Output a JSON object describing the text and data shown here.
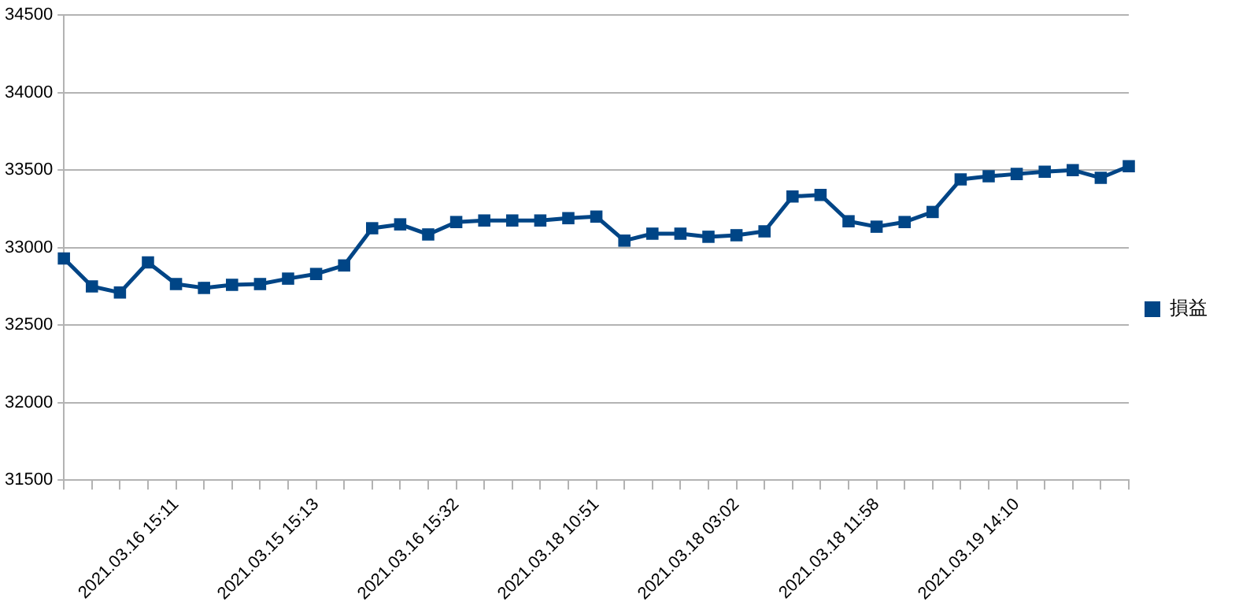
{
  "chart_data": {
    "type": "line",
    "categories": [
      null,
      null,
      null,
      null,
      "2021.03.16 15:11",
      null,
      null,
      null,
      null,
      "2021.03.15 15:13",
      null,
      null,
      null,
      null,
      "2021.03.16 15:32",
      null,
      null,
      null,
      null,
      "2021.03.18 10:51",
      null,
      null,
      null,
      null,
      "2021.03.18 03:02",
      null,
      null,
      null,
      null,
      "2021.03.18 11:58",
      null,
      null,
      null,
      null,
      "2021.03.19 14:10",
      null,
      null,
      null,
      null
    ],
    "series": [
      {
        "name": "損益",
        "color": "#004586",
        "values": [
          32930,
          32750,
          32710,
          32905,
          32765,
          32740,
          32760,
          32765,
          32800,
          32830,
          32885,
          33125,
          33150,
          33085,
          33165,
          33175,
          33175,
          33175,
          33190,
          33200,
          33045,
          33090,
          33090,
          33070,
          33080,
          33105,
          33330,
          33340,
          33170,
          33135,
          33165,
          33230,
          33440,
          33460,
          33475,
          33490,
          33500,
          33450,
          33525
        ]
      }
    ],
    "ylim": [
      31500,
      34500
    ],
    "yticks": [
      31500,
      32000,
      32500,
      33000,
      33500,
      34000,
      34500
    ],
    "grid": "y",
    "legend": "right",
    "marker": "square",
    "line_style": "solid"
  }
}
